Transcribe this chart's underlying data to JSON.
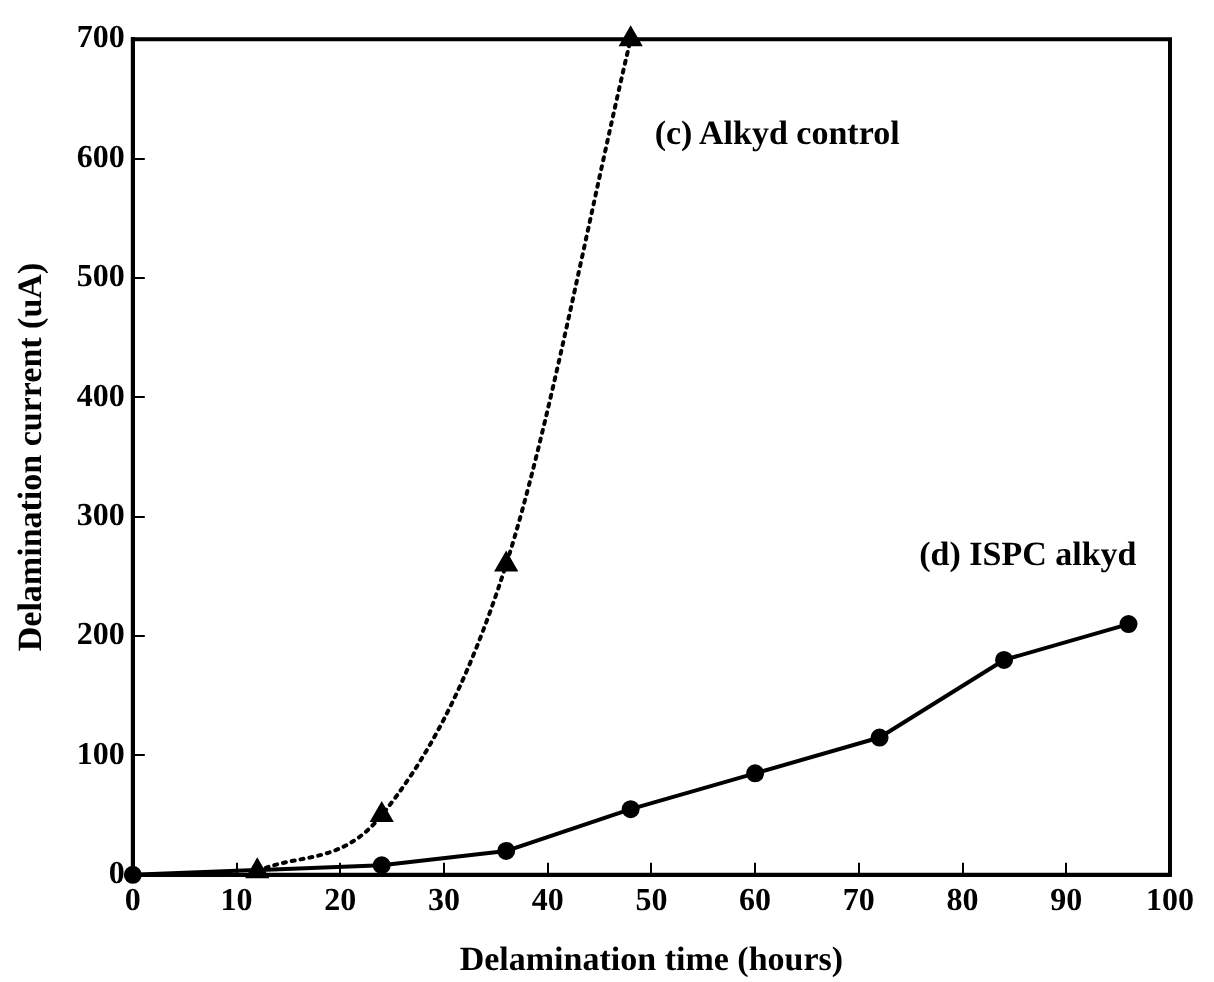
{
  "chart_data": {
    "type": "line",
    "xlabel": "Delamination time (hours)",
    "ylabel": "Delamination current (uA)",
    "xlim": [
      0,
      100
    ],
    "xticks": [
      0,
      10,
      20,
      30,
      40,
      50,
      60,
      70,
      80,
      90,
      100
    ],
    "ylim": [
      0,
      700
    ],
    "yticks": [
      0,
      100,
      200,
      300,
      400,
      500,
      600,
      700
    ],
    "grid": false,
    "legend": false,
    "series": [
      {
        "name": "(c) Alkyd control",
        "color": "#000000",
        "x": [
          12,
          24,
          36,
          48
        ],
        "values": [
          3,
          50,
          260,
          700
        ],
        "marker": "triangle",
        "line_style": "dotted"
      },
      {
        "name": "(d) ISPC alkyd",
        "color": "#000000",
        "x": [
          0,
          24,
          36,
          48,
          60,
          72,
          84,
          96
        ],
        "values": [
          0,
          8,
          20,
          55,
          85,
          115,
          180,
          210
        ],
        "marker": "circle",
        "line_style": "solid"
      }
    ]
  }
}
